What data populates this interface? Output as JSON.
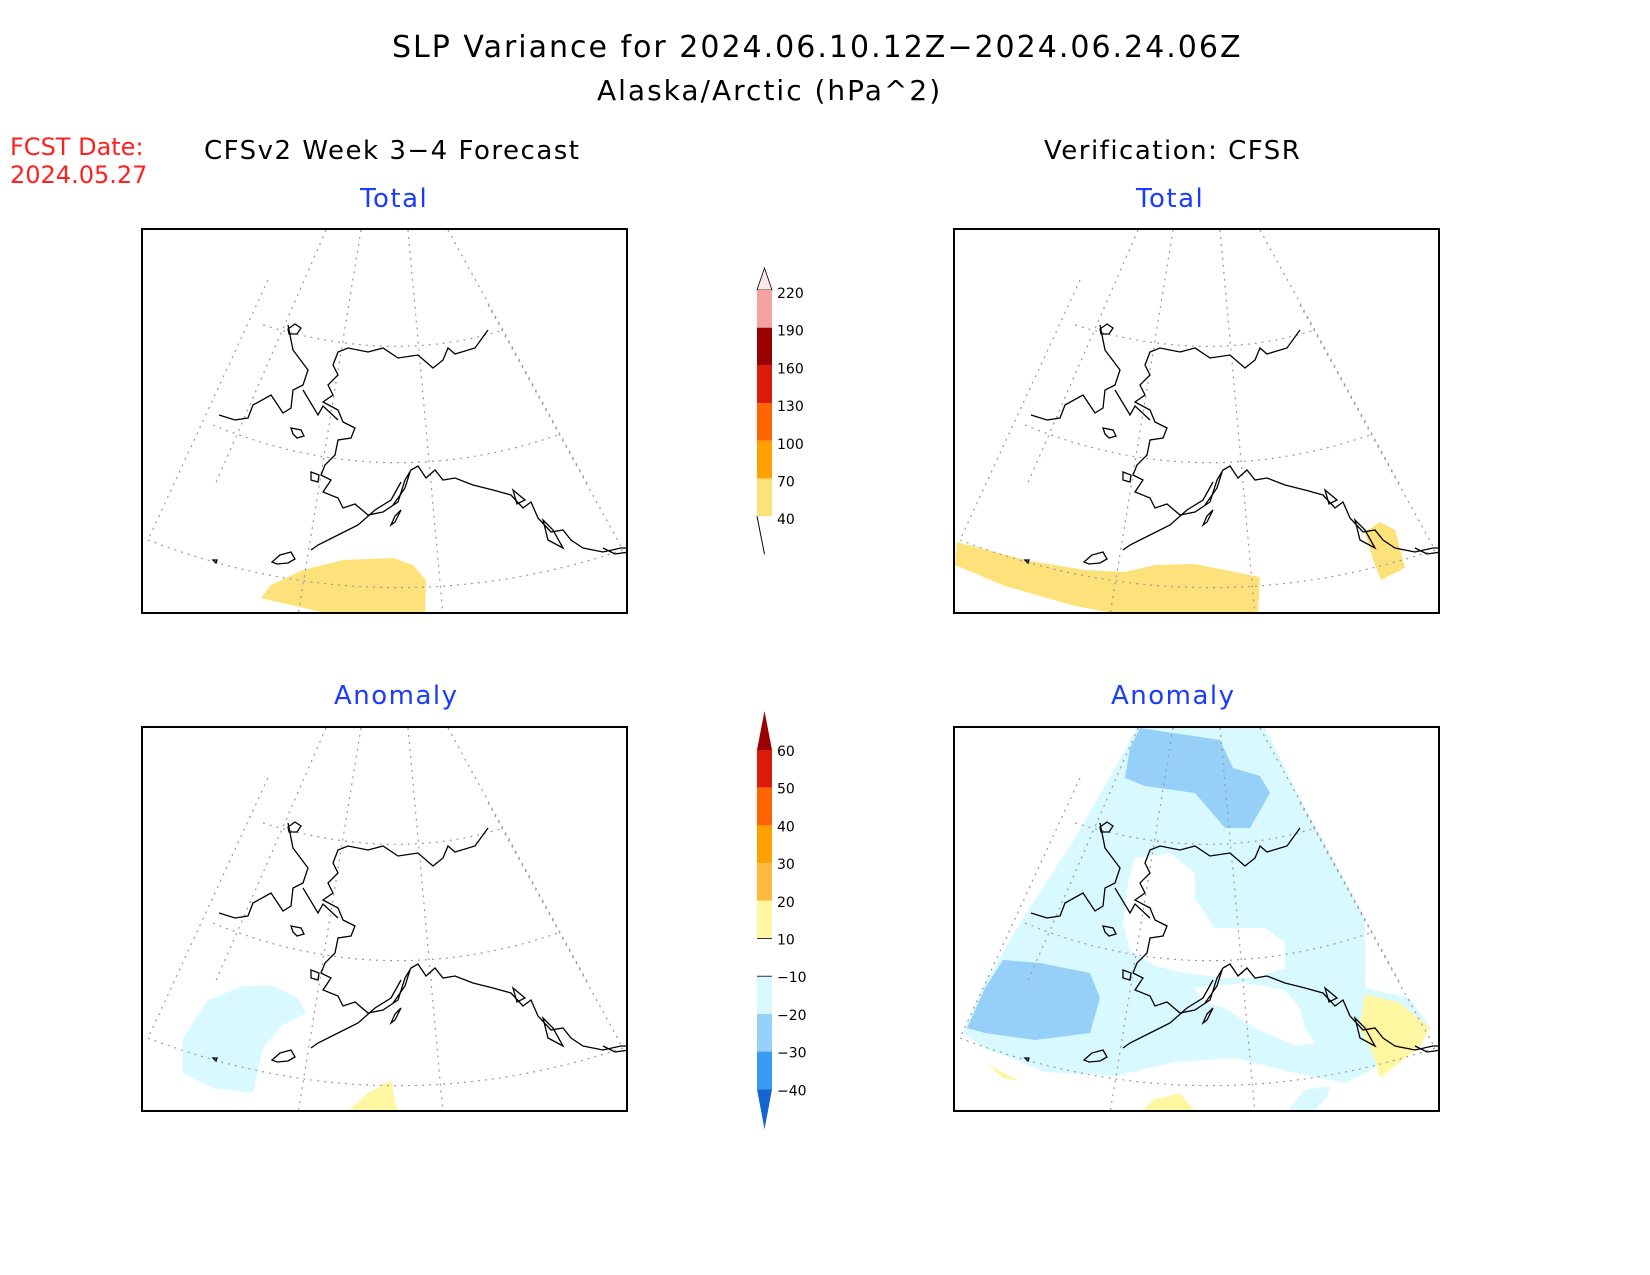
{
  "title": "SLP Variance for 2024.06.10.12Z−2024.06.24.06Z",
  "subtitle": "Alaska/Arctic (hPa^2)",
  "fcst": {
    "label": "FCST Date:",
    "date": "2024.05.27"
  },
  "columns": {
    "left": "CFSv2 Week 3−4 Forecast",
    "right": "Verification: CFSR"
  },
  "panels": {
    "top_left": "Total",
    "top_right": "Total",
    "bottom_left": "Anomaly",
    "bottom_right": "Anomaly"
  },
  "colorbars": {
    "total": {
      "levels": [
        "220",
        "190",
        "160",
        "130",
        "100",
        "70",
        "40"
      ],
      "colors": [
        "#fde8e8",
        "#f4a3a3",
        "#9b0000",
        "#dc1a0a",
        "#fe6400",
        "#fea000",
        "#fde27b"
      ]
    },
    "anomaly": {
      "levels": [
        "60",
        "50",
        "40",
        "30",
        "20",
        "10",
        "−10",
        "−20",
        "−30",
        "−40"
      ],
      "colors": [
        "#9b0000",
        "#dc1a0a",
        "#fe6400",
        "#fea000",
        "#feb93c",
        "#fef6a0",
        "#ffffff",
        "#d8f9ff",
        "#96cff8",
        "#3a9cf0",
        "#1464d2"
      ]
    }
  },
  "legend_colors": {
    "total_40_70": "#fde27b",
    "anom_10_20": "#fef6a0",
    "anom_m10_m20": "#d8f9ff",
    "anom_m20_m30": "#96cff8"
  }
}
